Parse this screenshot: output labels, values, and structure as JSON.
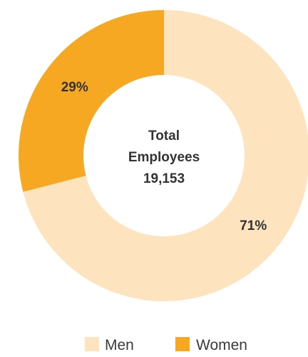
{
  "chart_data": {
    "type": "pie",
    "variant": "donut",
    "categories": [
      "Men",
      "Women"
    ],
    "values": [
      71,
      29
    ],
    "value_labels": [
      "71%",
      "29%"
    ],
    "colors": [
      "#FDE3BE",
      "#F7A823"
    ],
    "center_text": [
      "Total",
      "Employees",
      "19,153"
    ],
    "legend": {
      "placement": "bottom-center",
      "entries": [
        "Men",
        "Women"
      ]
    }
  }
}
